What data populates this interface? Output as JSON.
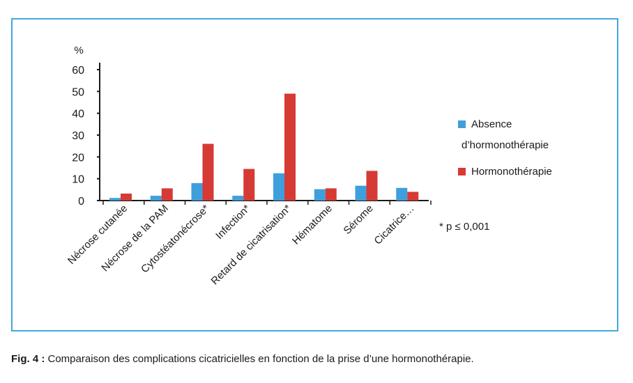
{
  "chart_data": {
    "type": "bar",
    "ylabel": "%",
    "ylim": [
      0,
      60
    ],
    "yticks": [
      0,
      10,
      20,
      30,
      40,
      50,
      60
    ],
    "categories": [
      "Nécrose cutanée",
      "Nécrose de la PAM",
      "Cytostéatonécrose*",
      "Infection*",
      "Retard de cicatrisation*",
      "Hématome",
      "Sérome",
      "Cicatrice…"
    ],
    "series": [
      {
        "name": "Absence d'hormonothérapie",
        "color": "#3f9fdc",
        "values": [
          1.2,
          2.2,
          8.0,
          2.2,
          12.5,
          5.2,
          6.8,
          5.8
        ]
      },
      {
        "name": "Hormonothérapie",
        "color": "#d63a35",
        "values": [
          3.2,
          5.6,
          26.0,
          14.5,
          49.0,
          5.6,
          13.6,
          4.0
        ]
      }
    ],
    "legend": {
      "position": "right",
      "entries": [
        {
          "line1": "Absence",
          "line2": "d’hormonothérapie"
        },
        {
          "line1": "Hormonothérapie",
          "line2": ""
        }
      ]
    },
    "annotation": "* p ≤ 0,001",
    "grid": false
  },
  "caption": {
    "label": "Fig. 4 :",
    "text": " Comparaison des complications cicatricielles en fonction de la prise d’une hormonothérapie."
  }
}
